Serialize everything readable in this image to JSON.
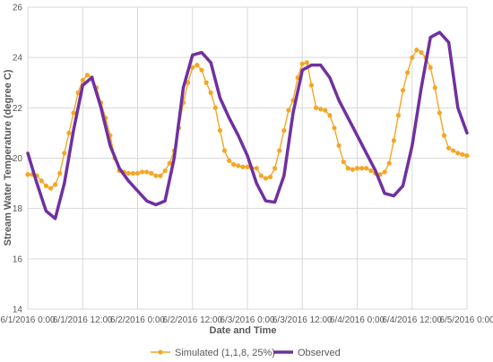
{
  "chart_data": {
    "type": "line",
    "title": "",
    "xlabel": "Date and Time",
    "ylabel": "Stream Water Temperature (degree C)",
    "ylim": [
      14,
      26
    ],
    "yticks": [
      14,
      16,
      18,
      20,
      22,
      24,
      26
    ],
    "xlim": [
      0,
      96
    ],
    "xtick_hours": [
      0,
      12,
      24,
      36,
      48,
      60,
      72,
      84,
      96
    ],
    "xtick_labels": [
      "6/1/2016 0:00",
      "6/1/2016 12:00",
      "6/2/2016 0:00",
      "6/2/2016 12:00",
      "6/3/2016 0:00",
      "6/3/2016 12:00",
      "6/4/2016 0:00",
      "6/4/2016 12:00",
      "6/5/2016 0:00"
    ],
    "x_units": "hours from 6/1/2016 0:00",
    "grid": true,
    "legend_position": "bottom",
    "series": [
      {
        "name": "Simulated (1,1,8, 25%)",
        "color": "#f5a623",
        "marker": "circle",
        "x": [
          0,
          1,
          2,
          3,
          4,
          5,
          6,
          7,
          8,
          9,
          10,
          11,
          12,
          13,
          14,
          15,
          16,
          17,
          18,
          19,
          20,
          21,
          22,
          23,
          24,
          25,
          26,
          27,
          28,
          29,
          30,
          31,
          32,
          33,
          34,
          35,
          36,
          37,
          38,
          39,
          40,
          41,
          42,
          43,
          44,
          45,
          46,
          47,
          48,
          49,
          50,
          51,
          52,
          53,
          54,
          55,
          56,
          57,
          58,
          59,
          60,
          61,
          62,
          63,
          64,
          65,
          66,
          67,
          68,
          69,
          70,
          71,
          72,
          73,
          74,
          75,
          76,
          77,
          78,
          79,
          80,
          81,
          82,
          83,
          84,
          85,
          86,
          87,
          88,
          89,
          90,
          91,
          92,
          93,
          94,
          95,
          96
        ],
        "y": [
          19.35,
          19.35,
          19.3,
          19.1,
          18.9,
          18.8,
          18.95,
          19.4,
          20.2,
          21.0,
          21.8,
          22.6,
          23.1,
          23.3,
          23.2,
          22.8,
          22.2,
          21.6,
          20.9,
          20.0,
          19.5,
          19.45,
          19.4,
          19.4,
          19.4,
          19.45,
          19.45,
          19.4,
          19.3,
          19.3,
          19.5,
          19.8,
          20.3,
          21.2,
          22.2,
          23.0,
          23.6,
          23.7,
          23.5,
          23.0,
          22.6,
          22.0,
          21.1,
          20.3,
          19.9,
          19.75,
          19.7,
          19.65,
          19.65,
          19.6,
          19.6,
          19.3,
          19.2,
          19.25,
          19.6,
          20.3,
          21.1,
          21.9,
          22.3,
          23.2,
          23.75,
          23.8,
          22.9,
          22.0,
          21.95,
          21.9,
          21.7,
          21.2,
          20.5,
          19.85,
          19.6,
          19.55,
          19.6,
          19.6,
          19.6,
          19.5,
          19.4,
          19.35,
          19.45,
          19.8,
          20.7,
          21.7,
          22.7,
          23.4,
          24.0,
          24.3,
          24.2,
          24.0,
          23.6,
          22.8,
          21.8,
          20.9,
          20.4,
          20.3,
          20.2,
          20.15,
          20.1
        ]
      },
      {
        "name": "Observed",
        "color": "#7030a0",
        "marker": "none",
        "x": [
          0,
          2,
          4,
          6,
          8,
          10,
          12,
          14,
          16,
          18,
          20,
          22,
          24,
          26,
          28,
          30,
          32,
          34,
          36,
          38,
          40,
          42,
          44,
          46,
          48,
          50,
          52,
          54,
          56,
          58,
          60,
          62,
          64,
          66,
          68,
          70,
          72,
          74,
          76,
          78,
          80,
          82,
          84,
          86,
          88,
          90,
          92,
          94,
          96
        ],
        "y": [
          20.2,
          19.0,
          17.9,
          17.6,
          19.0,
          21.1,
          22.9,
          23.2,
          22.0,
          20.5,
          19.6,
          19.1,
          18.7,
          18.3,
          18.15,
          18.3,
          20.0,
          22.8,
          24.1,
          24.2,
          23.8,
          22.4,
          21.6,
          20.9,
          20.1,
          19.0,
          18.3,
          18.25,
          19.3,
          21.8,
          23.5,
          23.7,
          23.7,
          23.2,
          22.3,
          21.6,
          20.9,
          20.2,
          19.5,
          18.6,
          18.5,
          18.9,
          20.5,
          22.8,
          24.8,
          25.0,
          24.6,
          22.0,
          21.0
        ]
      }
    ]
  }
}
